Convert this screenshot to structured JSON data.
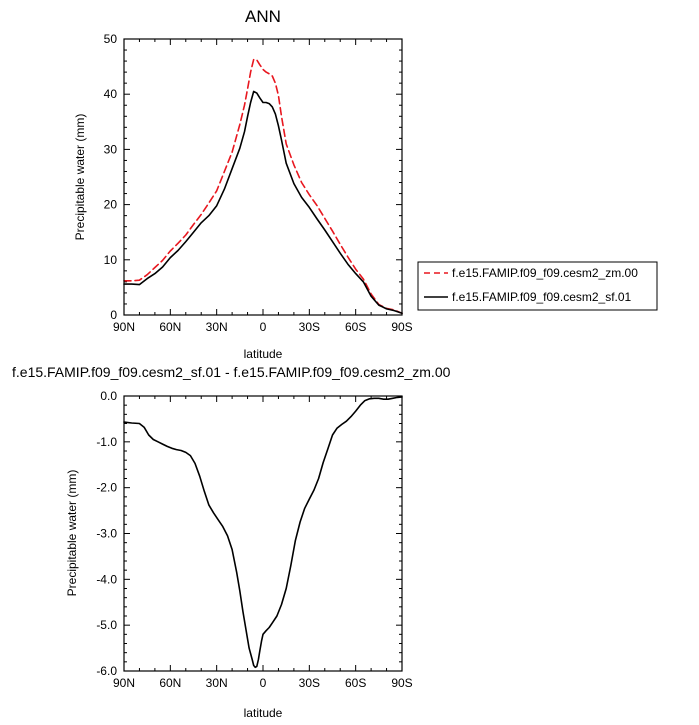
{
  "chart_data": [
    {
      "type": "line",
      "title": "ANN",
      "xlabel": "latitude",
      "ylabel": "Precipitable water (mm)",
      "xlim": [
        90,
        -90
      ],
      "ylim": [
        0,
        50
      ],
      "x_ticks": [
        90,
        60,
        30,
        0,
        -30,
        -60,
        -90
      ],
      "x_tick_labels": [
        "90N",
        "60N",
        "30N",
        "0",
        "30S",
        "60S",
        "90S"
      ],
      "y_ticks": [
        0,
        10,
        20,
        30,
        40,
        50
      ],
      "y_tick_labels": [
        "0",
        "10",
        "20",
        "30",
        "40",
        "50"
      ],
      "grid": false,
      "legend_position": "right",
      "series": [
        {
          "name": "f.e15.FAMIP.f09_f09.cesm2_zm.00",
          "color": "#e8171f",
          "dash": "dashed",
          "x": [
            90,
            85,
            80,
            75,
            70,
            65,
            60,
            55,
            50,
            45,
            40,
            35,
            30,
            25,
            20,
            15,
            12,
            10,
            8,
            6,
            4,
            2,
            0,
            -2,
            -4,
            -6,
            -8,
            -10,
            -12,
            -15,
            -20,
            -25,
            -30,
            -35,
            -40,
            -45,
            -50,
            -55,
            -60,
            -65,
            -70,
            -75,
            -80,
            -85,
            -90
          ],
          "y": [
            6.2,
            6.2,
            6.3,
            7.3,
            8.6,
            9.9,
            11.6,
            13.0,
            14.5,
            16.4,
            18.2,
            20.3,
            22.5,
            26.0,
            29.5,
            34.5,
            38.0,
            41.0,
            44.0,
            46.3,
            46.2,
            45.3,
            44.5,
            44.0,
            43.7,
            43.3,
            42.0,
            39.8,
            36.0,
            31.0,
            27.2,
            24.0,
            21.8,
            19.8,
            17.5,
            15.2,
            12.8,
            10.5,
            8.3,
            6.5,
            3.8,
            1.9,
            1.2,
            0.9,
            0.3
          ]
        },
        {
          "name": "f.e15.FAMIP.f09_f09.cesm2_sf.01",
          "color": "#000000",
          "dash": "solid",
          "x": [
            90,
            85,
            80,
            75,
            70,
            65,
            60,
            55,
            50,
            45,
            40,
            35,
            30,
            25,
            20,
            15,
            12,
            10,
            8,
            6,
            4,
            2,
            0,
            -2,
            -4,
            -6,
            -8,
            -10,
            -12,
            -15,
            -20,
            -25,
            -30,
            -35,
            -40,
            -45,
            -50,
            -55,
            -60,
            -65,
            -70,
            -75,
            -80,
            -85,
            -90
          ],
          "y": [
            5.6,
            5.6,
            5.5,
            6.6,
            7.5,
            8.7,
            10.4,
            11.7,
            13.3,
            15.0,
            16.7,
            18.0,
            19.8,
            22.8,
            26.5,
            30.2,
            33.2,
            36.0,
            38.5,
            40.5,
            40.2,
            39.3,
            38.5,
            38.5,
            38.3,
            37.7,
            36.4,
            34.3,
            31.7,
            27.5,
            23.8,
            21.3,
            19.5,
            17.4,
            15.4,
            13.3,
            11.2,
            9.2,
            7.5,
            6.0,
            3.4,
            1.8,
            1.1,
            0.8,
            0.3
          ]
        }
      ]
    },
    {
      "type": "line",
      "title": "f.e15.FAMIP.f09_f09.cesm2_sf.01 - f.e15.FAMIP.f09_f09.cesm2_zm.00",
      "xlabel": "latitude",
      "ylabel": "Precipitable water (mm)",
      "xlim": [
        90,
        -90
      ],
      "ylim": [
        -6,
        0
      ],
      "x_ticks": [
        90,
        60,
        30,
        0,
        -30,
        -60,
        -90
      ],
      "x_tick_labels": [
        "90N",
        "60N",
        "30N",
        "0",
        "30S",
        "60S",
        "90S"
      ],
      "y_ticks": [
        0,
        -1,
        -2,
        -3,
        -4,
        -5,
        -6
      ],
      "y_tick_labels": [
        "0.0",
        "-1.0",
        "-2.0",
        "-3.0",
        "-4.0",
        "-5.0",
        "-6.0"
      ],
      "grid": false,
      "series": [
        {
          "color": "#000000",
          "dash": "solid",
          "x": [
            90,
            85,
            80,
            77,
            74,
            71,
            68,
            65,
            62,
            59,
            56,
            53,
            50,
            47,
            44,
            41,
            38,
            35,
            32,
            29,
            26,
            23,
            20,
            17,
            15,
            13,
            11,
            9,
            7,
            6,
            5,
            4,
            3,
            2,
            1,
            0,
            -2,
            -4,
            -6,
            -9,
            -12,
            -15,
            -18,
            -21,
            -24,
            -27,
            -30,
            -33,
            -36,
            -39,
            -42,
            -45,
            -48,
            -51,
            -54,
            -57,
            -60,
            -63,
            -66,
            -69,
            -72,
            -75,
            -78,
            -81,
            -84,
            -87,
            -90
          ],
          "y": [
            -0.57,
            -0.59,
            -0.6,
            -0.68,
            -0.85,
            -0.95,
            -1.0,
            -1.05,
            -1.1,
            -1.14,
            -1.17,
            -1.19,
            -1.23,
            -1.3,
            -1.47,
            -1.75,
            -2.08,
            -2.38,
            -2.55,
            -2.7,
            -2.85,
            -3.05,
            -3.35,
            -3.85,
            -4.25,
            -4.7,
            -5.1,
            -5.5,
            -5.75,
            -5.88,
            -5.92,
            -5.9,
            -5.75,
            -5.55,
            -5.35,
            -5.2,
            -5.12,
            -5.05,
            -4.95,
            -4.8,
            -4.55,
            -4.2,
            -3.7,
            -3.15,
            -2.75,
            -2.45,
            -2.25,
            -2.05,
            -1.8,
            -1.45,
            -1.15,
            -0.85,
            -0.7,
            -0.62,
            -0.55,
            -0.45,
            -0.33,
            -0.2,
            -0.1,
            -0.06,
            -0.05,
            -0.05,
            -0.07,
            -0.07,
            -0.05,
            -0.03,
            -0.02
          ]
        }
      ]
    }
  ]
}
